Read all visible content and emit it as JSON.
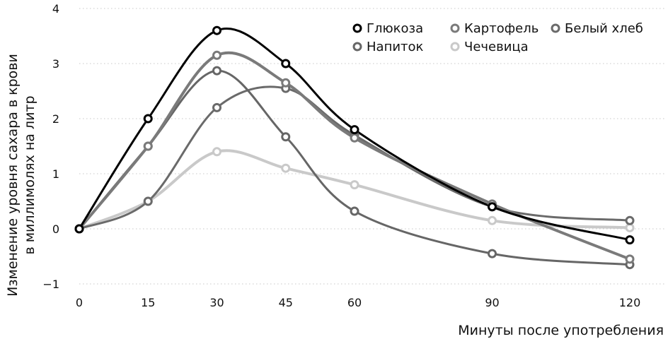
{
  "chart_data": {
    "type": "line",
    "title": "",
    "xlabel": "Минуты после употребления",
    "ylabel_lines": [
      "Изменение уровня сахара в крови",
      "в миллимолях на литр"
    ],
    "x": [
      0,
      15,
      30,
      45,
      60,
      90,
      120
    ],
    "x_ticks": [
      "0",
      "15",
      "30",
      "45",
      "60",
      "90",
      "120"
    ],
    "y_ticks": [
      "4",
      "3",
      "2",
      "1",
      "0",
      "−1"
    ],
    "ylim": [
      -1,
      4
    ],
    "xlim": [
      0,
      120
    ],
    "grid": "horizontal dotted",
    "legend_position": "top-right",
    "series": [
      {
        "name": "Глюкоза",
        "color": "#000000",
        "values": [
          0,
          2.0,
          3.6,
          3.0,
          1.8,
          0.4,
          -0.2
        ]
      },
      {
        "name": "Картофель",
        "color": "#7a7a7a",
        "values": [
          0,
          1.5,
          3.15,
          2.65,
          1.65,
          0.45,
          -0.55
        ]
      },
      {
        "name": "Белый хлеб",
        "color": "#6a6a6a",
        "values": [
          0,
          0.5,
          2.2,
          2.55,
          1.7,
          0.4,
          0.15
        ]
      },
      {
        "name": "Напиток",
        "color": "#666666",
        "values": [
          0,
          1.5,
          2.87,
          1.67,
          0.32,
          -0.45,
          -0.65
        ]
      },
      {
        "name": "Чечевица",
        "color": "#c9c9c9",
        "values": [
          0,
          0.5,
          1.4,
          1.1,
          0.8,
          0.15,
          0.02
        ]
      }
    ]
  }
}
